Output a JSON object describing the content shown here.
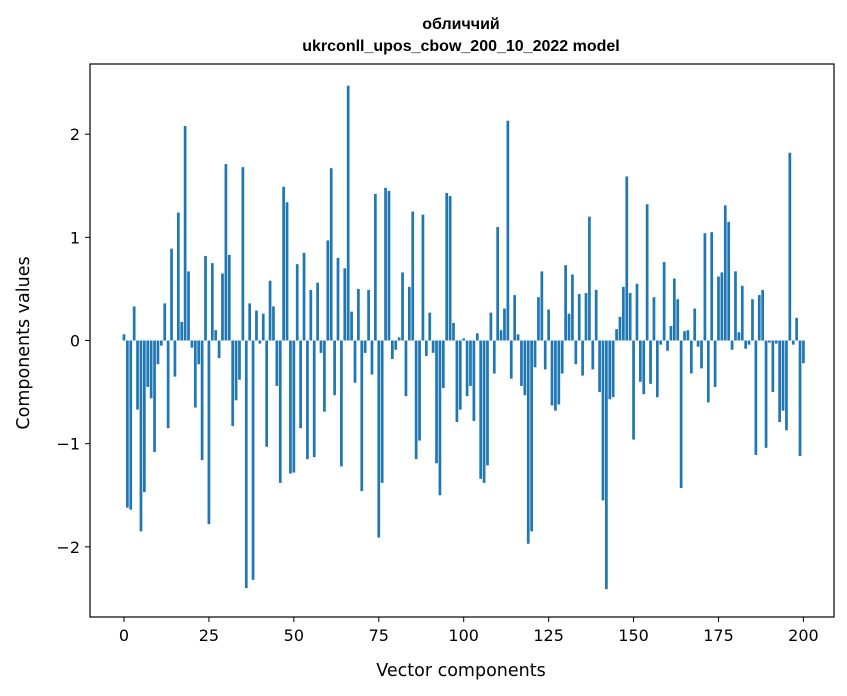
{
  "chart_data": {
    "type": "bar",
    "title": "обличчий",
    "subtitle": "ukrconll_upos_cbow_200_10_2022 model",
    "xlabel": "Vector components",
    "ylabel": "Components values",
    "xlim": [
      -10,
      209
    ],
    "ylim": [
      -2.68,
      2.68
    ],
    "xticks": [
      0,
      25,
      50,
      75,
      100,
      125,
      150,
      175,
      200
    ],
    "yticks": [
      -2,
      -1,
      0,
      1,
      2
    ],
    "ytick_labels": [
      "−2",
      "−1",
      "0",
      "1",
      "2"
    ],
    "bar_color": "#1f77b4",
    "series": [
      {
        "name": "обличчий",
        "x_start": 0,
        "values": [
          0.06,
          -1.62,
          -1.64,
          0.33,
          -0.67,
          -1.85,
          -1.47,
          -0.45,
          -0.56,
          -1.08,
          -0.23,
          -0.05,
          0.36,
          -0.85,
          0.89,
          -0.35,
          1.24,
          0.18,
          2.08,
          0.67,
          -0.07,
          -0.65,
          -0.23,
          -1.16,
          0.82,
          -1.78,
          0.75,
          0.1,
          -0.17,
          0.65,
          1.71,
          0.83,
          -0.83,
          -0.58,
          -0.38,
          1.68,
          -2.4,
          0.36,
          -2.32,
          0.29,
          -0.03,
          0.26,
          -1.03,
          0.58,
          0.33,
          -0.44,
          -1.38,
          1.49,
          1.34,
          -1.29,
          -1.28,
          0.74,
          -0.85,
          0.85,
          -1.15,
          0.49,
          -1.13,
          0.56,
          -0.12,
          -0.69,
          0.97,
          1.67,
          -0.53,
          0.8,
          -1.22,
          0.7,
          2.47,
          0.28,
          -0.41,
          0.5,
          -1.46,
          -0.12,
          0.49,
          -0.33,
          1.42,
          -1.91,
          -1.38,
          1.48,
          1.45,
          -0.18,
          -0.09,
          0.03,
          0.66,
          -0.54,
          0.52,
          1.25,
          -1.15,
          -0.97,
          1.22,
          -0.15,
          0.27,
          -0.12,
          -1.19,
          -1.5,
          -0.46,
          1.43,
          1.4,
          0.17,
          -0.79,
          -0.67,
          0.02,
          -0.54,
          -0.44,
          -0.78,
          0.07,
          -1.34,
          -1.38,
          -1.21,
          0.27,
          -0.32,
          1.1,
          0.1,
          0.31,
          2.13,
          -0.37,
          0.44,
          0.06,
          -0.44,
          -0.53,
          -1.97,
          -1.85,
          -0.26,
          0.42,
          0.67,
          -0.28,
          0.3,
          -0.63,
          -0.68,
          -0.62,
          -0.32,
          0.73,
          0.26,
          0.64,
          -0.23,
          0.45,
          -0.34,
          0.46,
          1.2,
          -0.28,
          0.49,
          -0.5,
          -1.55,
          -2.41,
          -0.57,
          -0.55,
          0.11,
          0.23,
          0.52,
          1.59,
          0.46,
          -0.96,
          0.55,
          -0.4,
          -0.52,
          1.32,
          -0.42,
          0.42,
          -0.55,
          -0.04,
          0.76,
          -0.1,
          0.14,
          0.6,
          0.4,
          -1.43,
          0.09,
          0.1,
          -0.32,
          0.31,
          -0.06,
          -0.27,
          1.04,
          -0.6,
          1.05,
          -0.45,
          0.62,
          0.66,
          1.31,
          1.15,
          -0.09,
          0.67,
          0.08,
          0.53,
          -0.08,
          -0.04,
          0.4,
          -1.11,
          0.44,
          0.49,
          -1.04,
          -0.02,
          -0.5,
          -0.03,
          -0.79,
          -0.68,
          -0.87,
          1.82,
          -0.04,
          0.22,
          -1.12,
          -0.22
        ]
      }
    ]
  }
}
